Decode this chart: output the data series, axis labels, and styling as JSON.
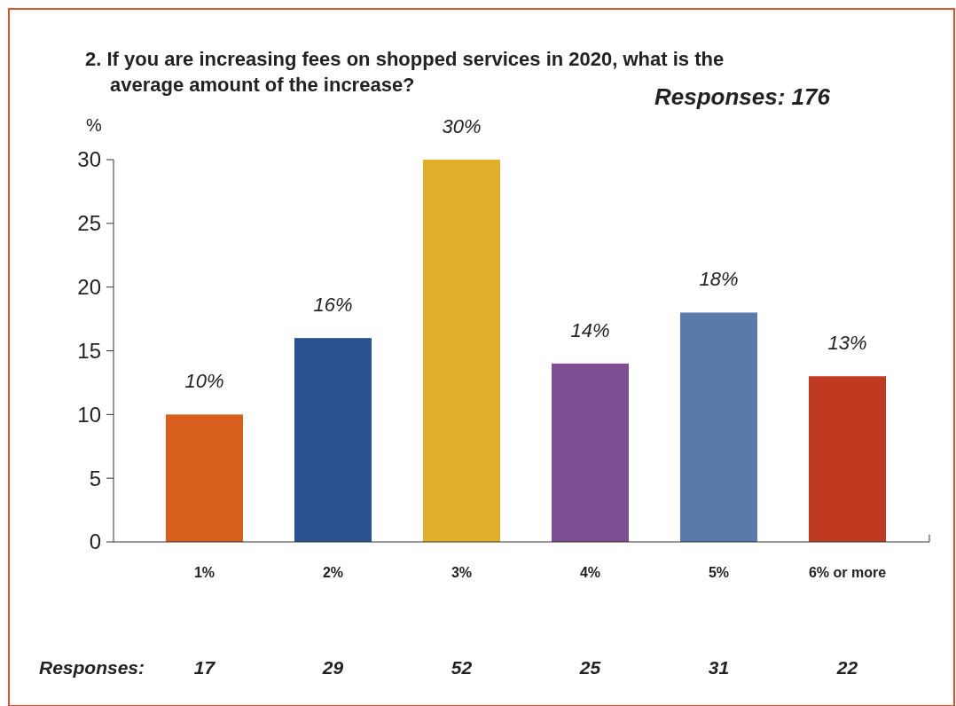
{
  "chart_data": {
    "type": "bar",
    "title": "2. If you are increasing fees on shopped services in 2020, what is the average amount of the increase?",
    "subtitle": "Responses:  176",
    "ylabel": "%",
    "categories": [
      "1%",
      "2%",
      "3%",
      "4%",
      "5%",
      "6% or more"
    ],
    "values": [
      10,
      16,
      30,
      14,
      18,
      13
    ],
    "colors": [
      "#d95f1e",
      "#2c5190",
      "#e0b02a",
      "#7d4e92",
      "#5a7aab",
      "#c03a22"
    ],
    "value_labels": [
      "10%",
      "16%",
      "30%",
      "14%",
      "18%",
      "13%"
    ],
    "ylim": [
      0,
      30
    ],
    "yticks": [
      0,
      5,
      10,
      15,
      20,
      25,
      30
    ],
    "grid": false,
    "annotations": [
      "Responses:",
      "17",
      "29",
      "52",
      "25",
      "31",
      "22"
    ]
  }
}
